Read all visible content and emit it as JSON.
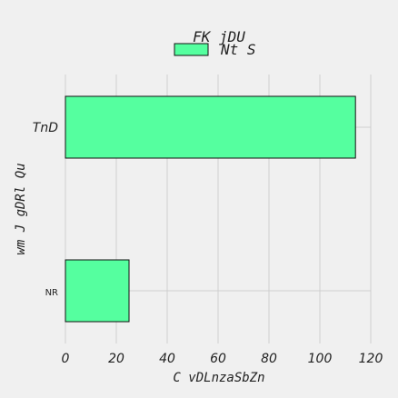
{
  "chart_data": {
    "type": "bar",
    "orientation": "horizontal",
    "title": "FK jDU",
    "xlabel": "C vDLnzaSbZn",
    "ylabel": "wm J gDRl Qu",
    "categories": [
      "TnD",
      "NR"
    ],
    "series": [
      {
        "name": "Nt S",
        "values": [
          114,
          25
        ]
      }
    ],
    "xlim": [
      0,
      120
    ],
    "xticks": [
      0,
      20,
      40,
      60,
      80,
      100,
      120
    ],
    "grid": true,
    "legend_position": "top-center",
    "colors": {
      "bar": "#55ff9f",
      "edge": "#111111",
      "background": "#f0f0f0"
    }
  }
}
